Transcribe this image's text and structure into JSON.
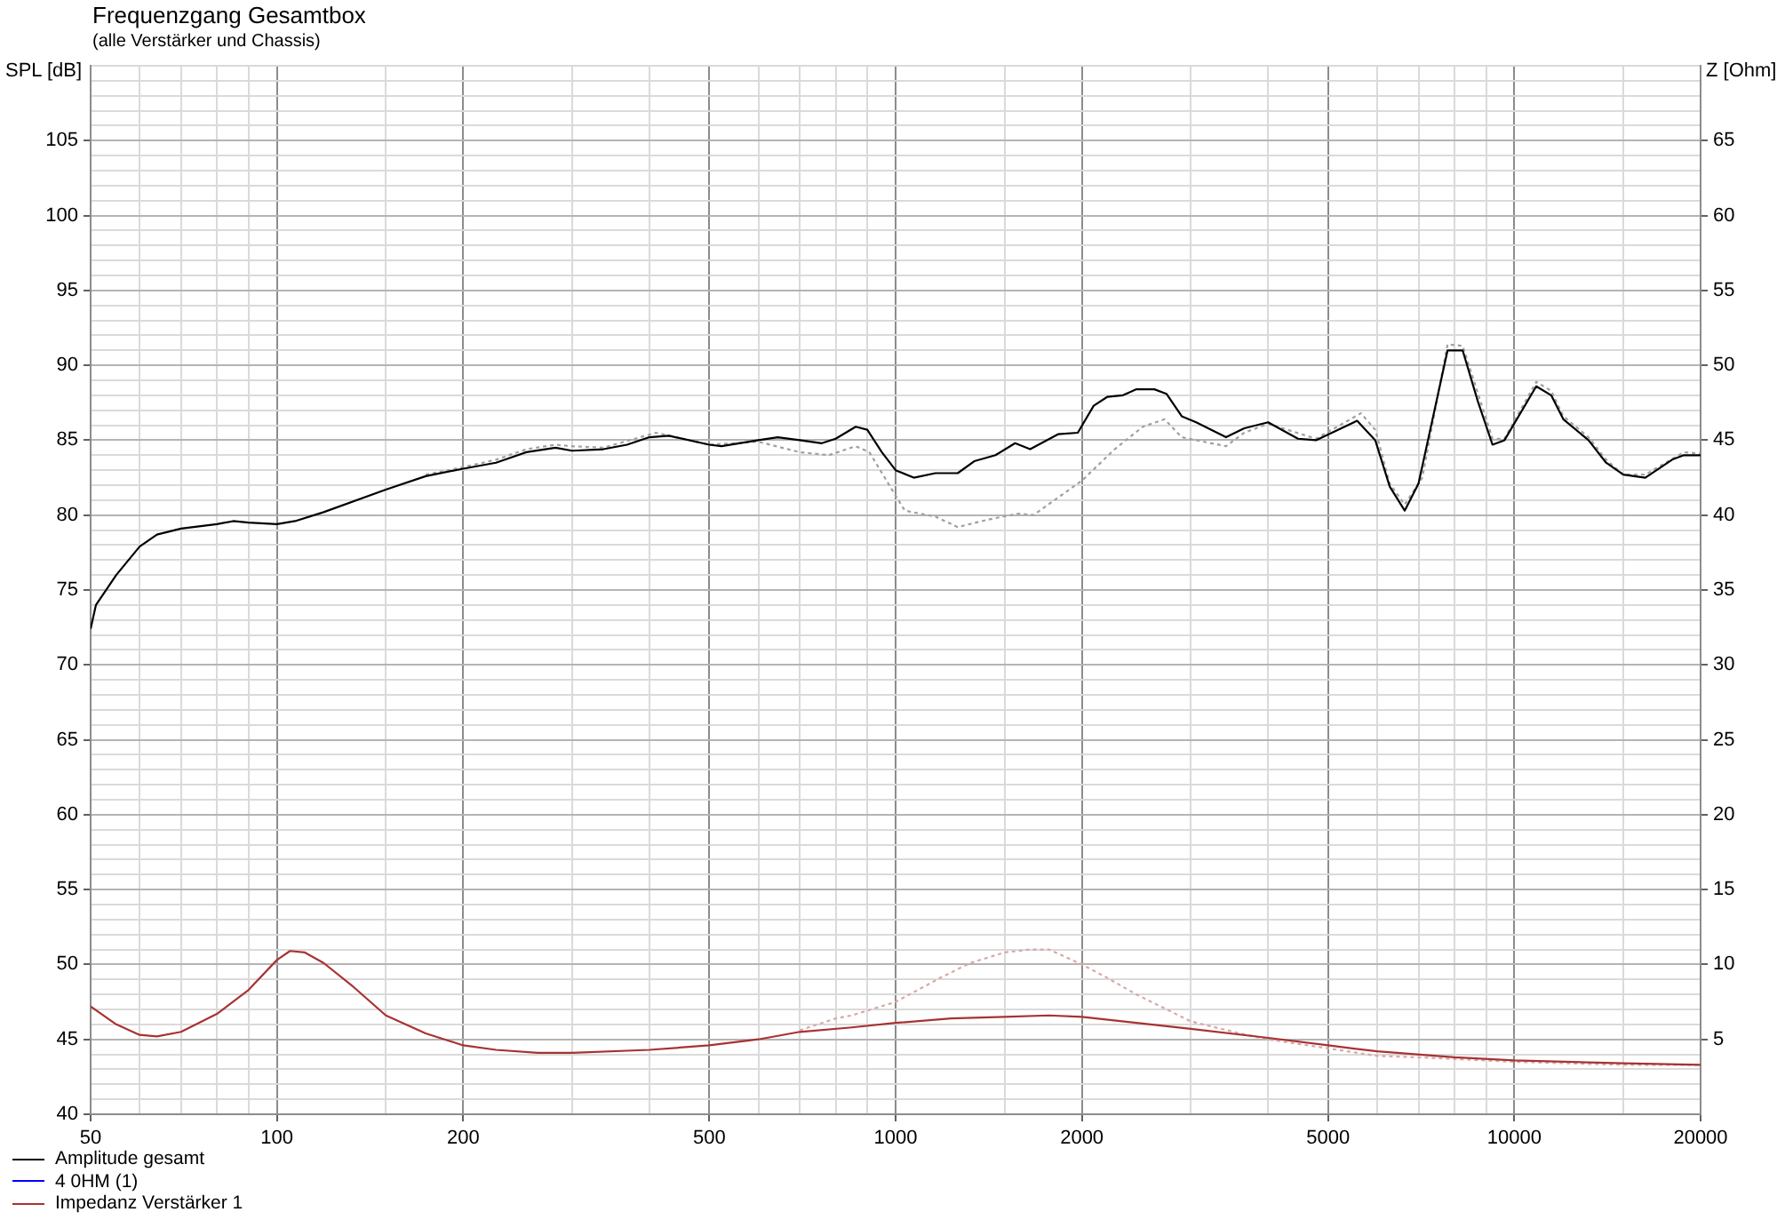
{
  "chart_data": {
    "type": "line",
    "title": "Frequenzgang Gesamtbox",
    "subtitle": "(alle Verstärker und Chassis)",
    "ylabel": "SPL [dB]",
    "y2label": "Z [Ohm]",
    "log": "x",
    "grid": true,
    "legend": "bottom left",
    "marker": "none",
    "line_style": "solid",
    "xlim": [
      50,
      20000
    ],
    "xticks": [
      50,
      {
        "value": 60,
        "label": null
      },
      {
        "value": 70,
        "label": null
      },
      {
        "value": 80,
        "label": null
      },
      {
        "value": 90,
        "label": null
      },
      100,
      {
        "value": 150,
        "label": null
      },
      200,
      {
        "value": 300,
        "label": null
      },
      {
        "value": 400,
        "label": null
      },
      500,
      {
        "value": 600,
        "label": null
      },
      {
        "value": 700,
        "label": null
      },
      {
        "value": 800,
        "label": null
      },
      {
        "value": 900,
        "label": null
      },
      1000,
      {
        "value": 1500,
        "label": null
      },
      2000,
      {
        "value": 3000,
        "label": null
      },
      {
        "value": 4000,
        "label": null
      },
      5000,
      {
        "value": 6000,
        "label": null
      },
      {
        "value": 7000,
        "label": null
      },
      {
        "value": 8000,
        "label": null
      },
      {
        "value": 9000,
        "label": null
      },
      10000,
      {
        "value": 15000,
        "label": null
      },
      20000
    ],
    "ylim": [
      40,
      110
    ],
    "yticks": [
      40,
      {
        "value": 41,
        "label": null
      },
      {
        "value": 42,
        "label": null
      },
      {
        "value": 43,
        "label": null
      },
      {
        "value": 44,
        "label": null
      },
      45,
      {
        "value": 46,
        "label": null
      },
      {
        "value": 47,
        "label": null
      },
      {
        "value": 48,
        "label": null
      },
      {
        "value": 49,
        "label": null
      },
      50,
      {
        "value": 51,
        "label": null
      },
      {
        "value": 52,
        "label": null
      },
      {
        "value": 53,
        "label": null
      },
      {
        "value": 54,
        "label": null
      },
      55,
      {
        "value": 56,
        "label": null
      },
      {
        "value": 57,
        "label": null
      },
      {
        "value": 58,
        "label": null
      },
      {
        "value": 59,
        "label": null
      },
      60,
      {
        "value": 61,
        "label": null
      },
      {
        "value": 62,
        "label": null
      },
      {
        "value": 63,
        "label": null
      },
      {
        "value": 64,
        "label": null
      },
      65,
      {
        "value": 66,
        "label": null
      },
      {
        "value": 67,
        "label": null
      },
      {
        "value": 68,
        "label": null
      },
      {
        "value": 69,
        "label": null
      },
      70,
      {
        "value": 71,
        "label": null
      },
      {
        "value": 72,
        "label": null
      },
      {
        "value": 73,
        "label": null
      },
      {
        "value": 74,
        "label": null
      },
      75,
      {
        "value": 76,
        "label": null
      },
      {
        "value": 77,
        "label": null
      },
      {
        "value": 78,
        "label": null
      },
      {
        "value": 79,
        "label": null
      },
      80,
      {
        "value": 81,
        "label": null
      },
      {
        "value": 82,
        "label": null
      },
      {
        "value": 83,
        "label": null
      },
      {
        "value": 84,
        "label": null
      },
      85,
      {
        "value": 86,
        "label": null
      },
      {
        "value": 87,
        "label": null
      },
      {
        "value": 88,
        "label": null
      },
      {
        "value": 89,
        "label": null
      },
      90,
      {
        "value": 91,
        "label": null
      },
      {
        "value": 92,
        "label": null
      },
      {
        "value": 93,
        "label": null
      },
      {
        "value": 94,
        "label": null
      },
      95,
      {
        "value": 96,
        "label": null
      },
      {
        "value": 97,
        "label": null
      },
      {
        "value": 98,
        "label": null
      },
      {
        "value": 99,
        "label": null
      },
      100,
      {
        "value": 101,
        "label": null
      },
      {
        "value": 102,
        "label": null
      },
      {
        "value": 103,
        "label": null
      },
      {
        "value": 104,
        "label": null
      },
      105,
      {
        "value": 106,
        "label": null
      },
      {
        "value": 107,
        "label": null
      },
      {
        "value": 108,
        "label": null
      },
      {
        "value": 109,
        "label": null
      },
      {
        "value": 110,
        "label": null
      }
    ],
    "y2lim": [
      0,
      70
    ],
    "y2ticks": [
      5,
      10,
      15,
      20,
      25,
      30,
      35,
      40,
      45,
      50,
      55,
      60,
      65
    ],
    "series": [
      {
        "name": "Amplitude gesamt",
        "color": "#000000",
        "x": [
          50,
          51,
          55,
          60,
          64,
          70,
          80,
          85,
          90,
          100,
          107,
          119,
          150,
          174,
          200,
          226,
          253,
          282,
          300,
          337,
          368,
          400,
          430,
          500,
          523,
          600,
          645,
          700,
          760,
          800,
          862,
          900,
          950,
          1000,
          1070,
          1160,
          1260,
          1340,
          1450,
          1560,
          1650,
          1830,
          1970,
          2090,
          2200,
          2330,
          2450,
          2620,
          2740,
          2900,
          3060,
          3270,
          3420,
          3660,
          4000,
          4470,
          4780,
          5570,
          5960,
          6290,
          6650,
          7000,
          7800,
          8250,
          8730,
          9220,
          9640,
          10850,
          11470,
          12000,
          13180,
          14070,
          15000,
          16280,
          17990,
          18790,
          20000
        ],
        "values": [
          72.4,
          74.0,
          76.0,
          77.9,
          78.7,
          79.1,
          79.4,
          79.6,
          79.5,
          79.4,
          79.6,
          80.2,
          81.7,
          82.6,
          83.1,
          83.5,
          84.2,
          84.5,
          84.3,
          84.4,
          84.7,
          85.2,
          85.3,
          84.7,
          84.6,
          85.0,
          85.2,
          85.0,
          84.8,
          85.1,
          85.9,
          85.7,
          84.2,
          83.0,
          82.5,
          82.8,
          82.8,
          83.6,
          84.0,
          84.8,
          84.4,
          85.4,
          85.5,
          87.3,
          87.9,
          88.0,
          88.4,
          88.4,
          88.1,
          86.6,
          86.2,
          85.6,
          85.2,
          85.8,
          86.2,
          85.1,
          85.0,
          86.3,
          85.0,
          81.9,
          80.3,
          82.1,
          91.0,
          91.0,
          87.6,
          84.7,
          85.0,
          88.6,
          88.0,
          86.4,
          85.0,
          83.5,
          82.7,
          82.5,
          83.7,
          84.0,
          84.0
        ]
      },
      {
        "name": "4 0HM (1)",
        "color": "#0000ff"
      },
      {
        "name": "Impedanz Verstärker 1",
        "color": "#a83232",
        "axis": "y2",
        "x": [
          50,
          55,
          60,
          64,
          70,
          80,
          90,
          100,
          105,
          111,
          119,
          133,
          150,
          174,
          200,
          226,
          264,
          300,
          400,
          500,
          600,
          700,
          850,
          1000,
          1230,
          1500,
          1770,
          2000,
          2450,
          3000,
          4000,
          5000,
          6000,
          8000,
          10000,
          15000,
          20000
        ],
        "values": [
          7.2,
          6.0,
          5.3,
          5.2,
          5.5,
          6.7,
          8.3,
          10.3,
          10.9,
          10.8,
          10.1,
          8.5,
          6.6,
          5.4,
          4.6,
          4.3,
          4.1,
          4.1,
          4.3,
          4.6,
          5.0,
          5.5,
          5.8,
          6.1,
          6.4,
          6.5,
          6.6,
          6.5,
          6.1,
          5.7,
          5.1,
          4.6,
          4.2,
          3.8,
          3.6,
          3.4,
          3.3
        ]
      },
      {
        "color": "#a0a0a0",
        "line_style": "dotted",
        "x": [
          174,
          200,
          226,
          253,
          282,
          300,
          337,
          410,
          500,
          600,
          700,
          780,
          862,
          907,
          1000,
          1035,
          1160,
          1260,
          1410,
          1580,
          1670,
          2000,
          2260,
          2510,
          2720,
          2900,
          3420,
          3660,
          4000,
          4780,
          5650,
          5960,
          6290,
          6650,
          7100,
          7800,
          8250,
          9220,
          9640,
          10850,
          11470,
          12000,
          13180,
          14070,
          15000,
          16280,
          18790,
          20000
        ],
        "values": [
          82.7,
          83.2,
          83.7,
          84.4,
          84.7,
          84.6,
          84.5,
          85.5,
          84.7,
          84.9,
          84.2,
          84.0,
          84.6,
          84.2,
          81.3,
          80.3,
          79.9,
          79.2,
          79.7,
          80.1,
          80.0,
          82.3,
          84.4,
          85.9,
          86.4,
          85.2,
          84.6,
          85.5,
          86.1,
          85.1,
          86.8,
          85.7,
          82.1,
          80.7,
          82.5,
          91.4,
          91.3,
          85.1,
          85.1,
          88.9,
          88.3,
          86.6,
          85.2,
          83.7,
          82.7,
          82.7,
          84.2,
          84.1
        ]
      },
      {
        "color": "#d8a8a8",
        "line_style": "dotted",
        "axis": "y2",
        "x": [
          700,
          800,
          850,
          1000,
          1180,
          1320,
          1500,
          1650,
          1770,
          2000,
          2200,
          2450,
          3000,
          3600,
          4000,
          5000,
          6000,
          7000,
          10000,
          15000,
          20000
        ],
        "values": [
          5.6,
          6.4,
          6.6,
          7.5,
          9.1,
          10.1,
          10.8,
          11.0,
          11.0,
          10.0,
          9.1,
          8.0,
          6.2,
          5.4,
          5.0,
          4.4,
          3.9,
          3.8,
          3.5,
          3.3,
          3.3
        ]
      }
    ]
  }
}
